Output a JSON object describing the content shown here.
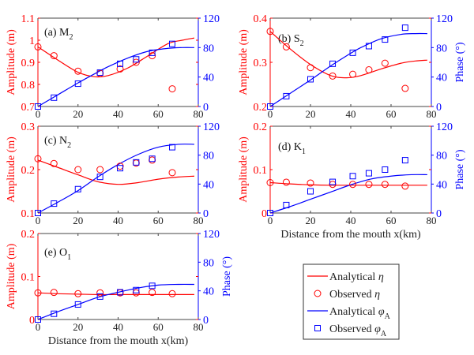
{
  "colors": {
    "amplitude": "#ff0000",
    "phase": "#0000ff",
    "axis": "#000000"
  },
  "chart_data": [
    {
      "id": "a",
      "type": "line",
      "title": "(a) M",
      "title_sub": "2",
      "ylim": [
        0.7,
        1.1
      ],
      "yticks": [
        "0.7",
        "0.8",
        "0.9",
        "1",
        "1.1"
      ],
      "yticks_val": [
        0.7,
        0.8,
        0.9,
        1.0,
        1.1
      ],
      "ylabel": "Amplitude (m)",
      "ylabel2": "",
      "xlabel": "",
      "obs_x": [
        0,
        8,
        20,
        31,
        41,
        49,
        57,
        67
      ],
      "obs_amp": [
        0.97,
        0.93,
        0.86,
        0.85,
        0.87,
        0.9,
        0.93,
        0.78
      ],
      "obs_phase": [
        0,
        12,
        31,
        46,
        58,
        64,
        73,
        85
      ],
      "ana_x": [
        0,
        10,
        20,
        28,
        35,
        45,
        55,
        65,
        72,
        78
      ],
      "ana_amp": [
        0.97,
        0.91,
        0.855,
        0.835,
        0.84,
        0.875,
        0.93,
        0.985,
        1.0,
        1.01
      ],
      "ana_phase": [
        0,
        16,
        32,
        44,
        54,
        66,
        75,
        79,
        80,
        80
      ]
    },
    {
      "id": "b",
      "type": "line",
      "title": "(b) S",
      "title_sub": "2",
      "ylim": [
        0.2,
        0.4
      ],
      "yticks": [
        "0.2",
        "0.3",
        "0.4"
      ],
      "yticks_val": [
        0.2,
        0.3,
        0.4
      ],
      "ylabel": "Amplitude (m)",
      "ylabel2": "Phase (°)",
      "xlabel": "",
      "obs_x": [
        0,
        8,
        20,
        31,
        41,
        49,
        57,
        67
      ],
      "obs_amp": [
        0.37,
        0.335,
        0.288,
        0.269,
        0.273,
        0.283,
        0.298,
        0.241
      ],
      "obs_phase": [
        0,
        14,
        37,
        58,
        73,
        82,
        91,
        107
      ],
      "ana_x": [
        0,
        10,
        20,
        30,
        38,
        45,
        55,
        65,
        72,
        78
      ],
      "ana_amp": [
        0.37,
        0.33,
        0.295,
        0.27,
        0.265,
        0.27,
        0.285,
        0.298,
        0.303,
        0.305
      ],
      "ana_phase": [
        0,
        18,
        36,
        55,
        69,
        80,
        92,
        98,
        99,
        99
      ]
    },
    {
      "id": "c",
      "type": "line",
      "title": "(c) N",
      "title_sub": "2",
      "ylim": [
        0.1,
        0.3
      ],
      "yticks": [
        "0.1",
        "0.2",
        "0.3"
      ],
      "yticks_val": [
        0.1,
        0.2,
        0.3
      ],
      "ylabel": "Amplitude (m)",
      "ylabel2": "",
      "xlabel": "",
      "obs_x": [
        0,
        8,
        20,
        31,
        41,
        49,
        57,
        67
      ],
      "obs_amp": [
        0.225,
        0.214,
        0.2,
        0.2,
        0.208,
        0.215,
        0.222,
        0.193
      ],
      "obs_phase": [
        0,
        13,
        33,
        50,
        62,
        70,
        75,
        91
      ],
      "ana_x": [
        0,
        10,
        20,
        30,
        40,
        50,
        60,
        70,
        78
      ],
      "ana_amp": [
        0.222,
        0.205,
        0.188,
        0.172,
        0.166,
        0.17,
        0.178,
        0.183,
        0.185
      ],
      "ana_phase": [
        0,
        15,
        31,
        50,
        67,
        81,
        91,
        95,
        95
      ]
    },
    {
      "id": "d",
      "type": "line",
      "title": "(d) K",
      "title_sub": "1",
      "ylim": [
        0,
        0.2
      ],
      "yticks": [
        "0",
        "0.1",
        "0.2"
      ],
      "yticks_val": [
        0,
        0.1,
        0.2
      ],
      "ylabel": "Amplitude (m)",
      "ylabel2": "Phase (°)",
      "xlabel": "Distance from the mouth x(km)",
      "obs_x": [
        0,
        8,
        20,
        31,
        41,
        49,
        57,
        67
      ],
      "obs_amp": [
        0.07,
        0.071,
        0.069,
        0.066,
        0.066,
        0.066,
        0.066,
        0.062
      ],
      "obs_phase": [
        0,
        11,
        30,
        43,
        51,
        55,
        60,
        73
      ],
      "ana_x": [
        0,
        10,
        20,
        30,
        40,
        50,
        60,
        70,
        78
      ],
      "ana_amp": [
        0.07,
        0.067,
        0.065,
        0.064,
        0.064,
        0.064,
        0.064,
        0.064,
        0.064
      ],
      "ana_phase": [
        0,
        9,
        19,
        29,
        39,
        47,
        51,
        53,
        53
      ]
    },
    {
      "id": "e",
      "type": "line",
      "title": "(e) O",
      "title_sub": "1",
      "ylim": [
        0,
        0.2
      ],
      "yticks": [
        "0",
        "0.1",
        "0.2"
      ],
      "yticks_val": [
        0,
        0.1,
        0.2
      ],
      "ylabel": "Amplitude (m)",
      "ylabel2": "Phase (°)",
      "xlabel": "Distance from the mouth x(km)",
      "obs_x": [
        0,
        8,
        20,
        31,
        41,
        49,
        57,
        67
      ],
      "obs_amp": [
        0.062,
        0.063,
        0.06,
        0.062,
        0.062,
        0.062,
        0.063,
        0.06
      ],
      "obs_phase": [
        0,
        8,
        21,
        32,
        38,
        41,
        47,
        null
      ],
      "ana_x": [
        0,
        10,
        20,
        30,
        40,
        50,
        60,
        70,
        78
      ],
      "ana_amp": [
        0.062,
        0.06,
        0.059,
        0.058,
        0.058,
        0.058,
        0.058,
        0.058,
        0.058
      ],
      "ana_phase": [
        0,
        11,
        21,
        31,
        38,
        44,
        48,
        49,
        49
      ]
    }
  ],
  "axes": {
    "xlim": [
      0,
      80
    ],
    "xticks": [
      "0",
      "20",
      "40",
      "60",
      "80"
    ],
    "xticks_val": [
      0,
      20,
      40,
      60,
      80
    ],
    "y2lim": [
      0,
      120
    ],
    "y2ticks": [
      "0",
      "40",
      "80",
      "120"
    ],
    "y2ticks_val": [
      0,
      40,
      80,
      120
    ]
  },
  "legend": {
    "items": [
      {
        "label": "Analytical ",
        "sym": "η",
        "sub": "",
        "kind": "amp-line"
      },
      {
        "label": "Observed ",
        "sym": "η",
        "sub": "",
        "kind": "amp-marker"
      },
      {
        "label": "Analytical ",
        "sym": "φ",
        "sub": "A",
        "kind": "phase-line"
      },
      {
        "label": "Observed ",
        "sym": "φ",
        "sub": "A",
        "kind": "phase-marker"
      }
    ]
  }
}
